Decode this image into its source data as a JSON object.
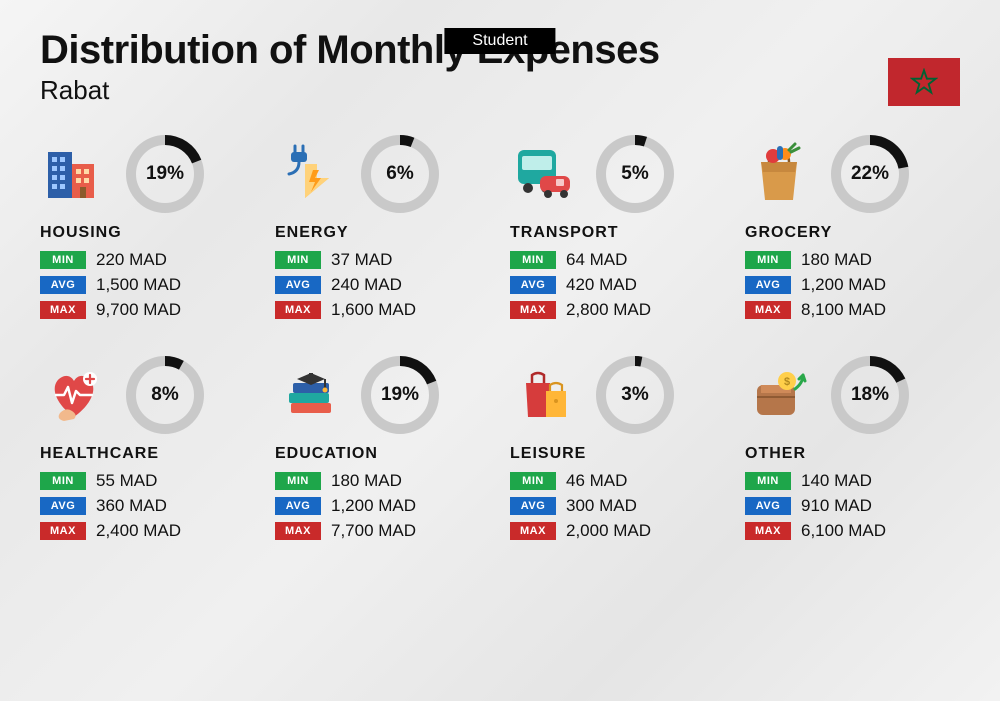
{
  "badge": "Student",
  "title": "Distribution of Monthly Expenses",
  "subtitle": "Rabat",
  "currency": "MAD",
  "flag": {
    "bg": "#c1272d",
    "star": "#006233"
  },
  "donut": {
    "size": 78,
    "stroke": 10,
    "track_color": "#c9c9c9",
    "fill_color": "#111111",
    "start_angle": -90
  },
  "labels": {
    "min": "MIN",
    "avg": "AVG",
    "max": "MAX"
  },
  "label_colors": {
    "min": "#1ea64a",
    "avg": "#1868c4",
    "max": "#c92a2a"
  },
  "categories": [
    {
      "key": "housing",
      "name": "HOUSING",
      "percent": 19,
      "min": "220",
      "avg": "1,500",
      "max": "9,700",
      "icon": "housing"
    },
    {
      "key": "energy",
      "name": "ENERGY",
      "percent": 6,
      "min": "37",
      "avg": "240",
      "max": "1,600",
      "icon": "energy"
    },
    {
      "key": "transport",
      "name": "TRANSPORT",
      "percent": 5,
      "min": "64",
      "avg": "420",
      "max": "2,800",
      "icon": "transport"
    },
    {
      "key": "grocery",
      "name": "GROCERY",
      "percent": 22,
      "min": "180",
      "avg": "1,200",
      "max": "8,100",
      "icon": "grocery"
    },
    {
      "key": "healthcare",
      "name": "HEALTHCARE",
      "percent": 8,
      "min": "55",
      "avg": "360",
      "max": "2,400",
      "icon": "healthcare"
    },
    {
      "key": "education",
      "name": "EDUCATION",
      "percent": 19,
      "min": "180",
      "avg": "1,200",
      "max": "7,700",
      "icon": "education"
    },
    {
      "key": "leisure",
      "name": "LEISURE",
      "percent": 3,
      "min": "46",
      "avg": "300",
      "max": "2,000",
      "icon": "leisure"
    },
    {
      "key": "other",
      "name": "OTHER",
      "percent": 18,
      "min": "140",
      "avg": "910",
      "max": "6,100",
      "icon": "other"
    }
  ]
}
